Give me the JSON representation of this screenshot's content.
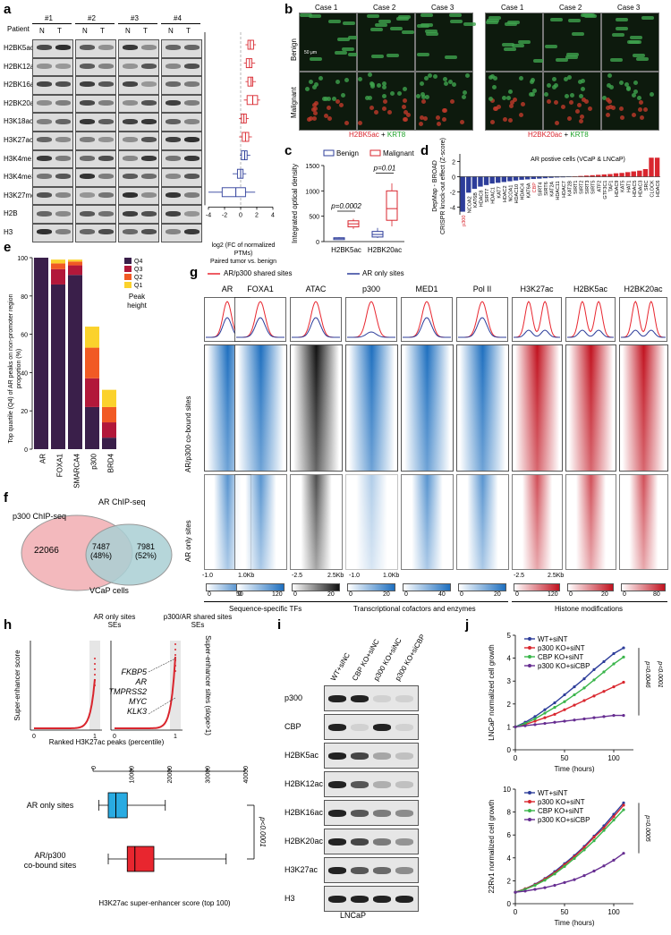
{
  "panel_labels": {
    "a": "a",
    "b": "b",
    "c": "c",
    "d": "d",
    "e": "e",
    "f": "f",
    "g": "g",
    "h": "h",
    "i": "i",
    "j": "j"
  },
  "panel_a": {
    "patient_label": "Patient",
    "patients": [
      "#1",
      "#2",
      "#3",
      "#4"
    ],
    "lanes": [
      "N",
      "T"
    ],
    "marks": [
      "H2BK5ac",
      "H2BK12ac",
      "H2BK16ac",
      "H2BK20ac",
      "H3K18ac",
      "H3K27ac",
      "H3K4me1",
      "H3K4me3",
      "H3K27me3",
      "H2B",
      "H3"
    ],
    "axis_ticks": [
      "-4",
      "-2",
      "0",
      "2",
      "4"
    ],
    "xlabel_line1": "log2 (FC of normalized PTMs)",
    "xlabel_line2": "Paired tumor vs. benign",
    "box_medians": [
      1.2,
      1.1,
      1.3,
      1.5,
      0.4,
      0.6,
      0.5,
      0.0,
      -0.6
    ],
    "box_q1": [
      0.9,
      0.7,
      0.9,
      0.8,
      0.1,
      0.2,
      0.1,
      -0.4,
      -2.3
    ],
    "box_q3": [
      1.6,
      1.4,
      1.5,
      2.1,
      0.7,
      1.0,
      0.8,
      0.3,
      0.6
    ],
    "box_min": [
      0.6,
      0.4,
      0.6,
      0.4,
      -0.2,
      -0.2,
      -0.1,
      -1.0,
      -4.0
    ],
    "box_max": [
      1.9,
      1.8,
      1.9,
      2.4,
      1.0,
      1.4,
      1.2,
      0.7,
      1.8
    ],
    "box_colors": [
      "#d9262e",
      "#d9262e",
      "#d9262e",
      "#d9262e",
      "#d9262e",
      "#d9262e",
      "#2d3d9a",
      "#2d3d9a",
      "#2d3d9a"
    ]
  },
  "panel_b": {
    "cases": [
      "Case 1",
      "Case 2",
      "Case 3",
      "Case 1",
      "Case 2",
      "Case 3"
    ],
    "rows": [
      "Benign",
      "Malignant"
    ],
    "scale_label": "50 μm",
    "legend_left_red": "H2BK5ac",
    "legend_left_green": "KRT8",
    "legend_right_red": "H2BK20ac",
    "legend_right_green": "KRT8",
    "plus": " + "
  },
  "chart_data": [
    {
      "type": "bar",
      "title": "AR postive cells (VCaP & LNCaP)",
      "ylabel_line1": "DepMap - BROAD",
      "ylabel_line2": "CRISPR knock-out effect (Z-score)",
      "categories": [
        "p300",
        "NCOA2",
        "KAT6B",
        "HDAC8",
        "SIRT7",
        "HDAC1",
        "KAT7",
        "HDAC2",
        "NCOA1",
        "HDAC10",
        "HDAC4",
        "KAT6A",
        "CBP",
        "SIRT4",
        "SIRT6",
        "KAT2A",
        "HDAC11",
        "HDAC7",
        "KAT2B",
        "SIRT1",
        "SIRT2",
        "SIRT3",
        "SIRT5",
        "ATF2",
        "GTF3C1",
        "TAF1",
        "HDAC9",
        "KAT5",
        "HAT1",
        "HDAC5",
        "HDAC3",
        "SRC",
        "CLOCK",
        "HDAC6"
      ],
      "values": [
        -4.6,
        -2.1,
        -1.6,
        -1.3,
        -1.1,
        -0.9,
        -0.8,
        -0.7,
        -0.6,
        -0.5,
        -0.4,
        -0.35,
        -0.3,
        -0.25,
        -0.2,
        -0.15,
        -0.1,
        -0.08,
        -0.05,
        0.05,
        0.1,
        0.15,
        0.2,
        0.25,
        0.3,
        0.35,
        0.45,
        0.5,
        0.6,
        0.7,
        0.8,
        1.0,
        2.5,
        2.5
      ],
      "highlight": [
        "p300",
        "CBP"
      ],
      "ylim": [
        -5,
        3
      ],
      "yticks": [
        "2",
        "0",
        "-2",
        "-4"
      ]
    },
    {
      "type": "box",
      "ylabel": "Integrated optical density",
      "categories": [
        "H2BK5ac",
        "H2BK20ac"
      ],
      "series": [
        {
          "name": "Benign",
          "color": "#2d3d9a",
          "q1": [
            55,
            90
          ],
          "median": [
            65,
            140
          ],
          "q3": [
            75,
            200
          ],
          "min": [
            45,
            70
          ],
          "max": [
            85,
            270
          ]
        },
        {
          "name": "Malignant",
          "color": "#d9262e",
          "q1": [
            290,
            420
          ],
          "median": [
            350,
            650
          ],
          "q3": [
            410,
            1000
          ],
          "min": [
            250,
            300
          ],
          "max": [
            450,
            1150
          ]
        }
      ],
      "ylim": [
        0,
        1500
      ],
      "yticks": [
        "0",
        "500",
        "1000",
        "1500"
      ],
      "pvalues": [
        "p=0.0002",
        "p=0.01"
      ]
    },
    {
      "type": "bar",
      "stacked": true,
      "ylabel_line1": "Top quartile (Q4) of AR peaks on non-promoter region",
      "ylabel_line2": "proportion (%)",
      "categories": [
        "AR",
        "FOXA1",
        "SMARCA4",
        "p300",
        "BRD4"
      ],
      "series": [
        {
          "name": "Q4",
          "color": "#3a1f4a",
          "values": [
            100,
            86,
            91,
            22,
            6
          ]
        },
        {
          "name": "Q3",
          "color": "#b2183a",
          "values": [
            0,
            8,
            5,
            15,
            8
          ]
        },
        {
          "name": "Q2",
          "color": "#f15a24",
          "values": [
            0,
            3,
            2,
            16,
            8
          ]
        },
        {
          "name": "Q1",
          "color": "#fbd22c",
          "values": [
            0,
            2,
            1,
            11,
            9
          ]
        }
      ],
      "ylim": [
        0,
        100
      ],
      "yticks": [
        "0",
        "20",
        "40",
        "60",
        "80",
        "100"
      ],
      "legend_title": "Peak height"
    },
    {
      "type": "scatter",
      "xlabel": "Ranked H3K27ac peaks (percentile)",
      "ylabel": "Super-enhancer score",
      "ylabel_right": "Super-enhancer sites (slope>1)",
      "panels": [
        "AR only sites SEs",
        "p300/AR shared sites SEs"
      ],
      "xticks": [
        "0",
        "0.5",
        "1"
      ],
      "genes": [
        "FKBP5",
        "AR",
        "TMPRSS2",
        "MYC",
        "KLK3"
      ]
    },
    {
      "type": "box",
      "orientation": "horizontal",
      "xlabel": "H3K27ac super-enhancer score (top 100)",
      "categories": [
        "AR only sites",
        "AR/p300 co-bound sites"
      ],
      "xticks": [
        "0",
        "10000",
        "20000",
        "30000",
        "40000"
      ],
      "colors": [
        "#29abe2",
        "#e8262f"
      ],
      "q1": [
        4000,
        9000
      ],
      "median": [
        6000,
        11000
      ],
      "q3": [
        9000,
        16000
      ],
      "min": [
        1500,
        4000
      ],
      "max": [
        19000,
        35000
      ],
      "pvalue": "p<0.0001"
    },
    {
      "type": "line",
      "panel": "LNCaP",
      "xlabel": "Time (hours)",
      "ylabel": "LNCaP normalized cell growth",
      "x": [
        0,
        10,
        20,
        30,
        40,
        50,
        60,
        70,
        80,
        90,
        100,
        110
      ],
      "series": [
        {
          "name": "WT+siNT",
          "color": "#2d3d9a",
          "values": [
            1,
            1.2,
            1.45,
            1.75,
            2.05,
            2.4,
            2.75,
            3.1,
            3.5,
            3.85,
            4.2,
            4.45
          ]
        },
        {
          "name": "p300 KO+siNT",
          "color": "#d9262e",
          "values": [
            1,
            1.1,
            1.25,
            1.4,
            1.55,
            1.75,
            1.95,
            2.15,
            2.35,
            2.55,
            2.75,
            2.95
          ]
        },
        {
          "name": "CBP KO+siNT",
          "color": "#39b54a",
          "values": [
            1,
            1.15,
            1.35,
            1.6,
            1.85,
            2.1,
            2.4,
            2.7,
            3.05,
            3.4,
            3.75,
            4.05
          ]
        },
        {
          "name": "p300 KO+siCBP",
          "color": "#662d91",
          "values": [
            1,
            1.05,
            1.1,
            1.15,
            1.2,
            1.25,
            1.3,
            1.35,
            1.4,
            1.45,
            1.5,
            1.5
          ]
        }
      ],
      "ylim": [
        0,
        5
      ],
      "xticks": [
        "0",
        "50",
        "100"
      ],
      "yticks": [
        "0",
        "1",
        "2",
        "3",
        "4",
        "5"
      ],
      "pvalues": [
        "p=0.0046",
        "p<0.0001"
      ]
    },
    {
      "type": "line",
      "panel": "22Rv1",
      "xlabel": "Time (hours)",
      "ylabel": "22Rv1 normalized cell growth",
      "x": [
        0,
        10,
        20,
        30,
        40,
        50,
        60,
        70,
        80,
        90,
        100,
        110
      ],
      "series": [
        {
          "name": "WT+siNT",
          "color": "#2d3d9a",
          "values": [
            1,
            1.3,
            1.7,
            2.2,
            2.8,
            3.5,
            4.2,
            5.0,
            5.9,
            6.8,
            7.8,
            8.8
          ]
        },
        {
          "name": "p300 KO+siNT",
          "color": "#d9262e",
          "values": [
            1,
            1.3,
            1.65,
            2.15,
            2.7,
            3.4,
            4.1,
            4.9,
            5.8,
            6.6,
            7.6,
            8.6
          ]
        },
        {
          "name": "CBP KO+siNT",
          "color": "#39b54a",
          "values": [
            1,
            1.25,
            1.6,
            2.05,
            2.6,
            3.25,
            3.95,
            4.7,
            5.5,
            6.4,
            7.3,
            8.2
          ]
        },
        {
          "name": "p300 KO+siCBP",
          "color": "#662d91",
          "values": [
            1,
            1.1,
            1.25,
            1.4,
            1.6,
            1.85,
            2.1,
            2.45,
            2.85,
            3.3,
            3.8,
            4.4
          ]
        }
      ],
      "ylim": [
        0,
        10
      ],
      "xticks": [
        "0",
        "50",
        "100"
      ],
      "yticks": [
        "0",
        "2",
        "4",
        "6",
        "8",
        "10"
      ],
      "pvalues": [
        "p=0.0005"
      ]
    }
  ],
  "panel_c": {
    "legend": [
      "Benign",
      "Malignant"
    ]
  },
  "panel_f": {
    "title_left": "p300 ChIP-seq",
    "title_right": "AR ChIP-seq",
    "left_only": "22066",
    "overlap": "7487",
    "overlap_pct": "(48%)",
    "right_only": "7981",
    "right_pct": "(52%)",
    "caption": "VCaP cells"
  },
  "panel_g": {
    "legend_shared": "AR/p300 shared sites",
    "legend_ar_only": "AR only sites",
    "tracks": [
      "AR",
      "FOXA1",
      "ATAC",
      "p300",
      "MED1",
      "Pol II",
      "H3K27ac",
      "H2BK5ac",
      "H2BK20ac"
    ],
    "row_labels": [
      "AR/p300 co-bound sites",
      "AR only sites"
    ],
    "axis_left": [
      "-1.0",
      "1.0Kb"
    ],
    "axis_atac": [
      "-2.5",
      "2.5Kb"
    ],
    "axis_p300": [
      "-1.0",
      "1.0Kb"
    ],
    "axis_hist": [
      "-2.5",
      "2.5Kb"
    ],
    "profile_ticks": [
      "100",
      "50",
      "0",
      "120",
      "60"
    ],
    "colorbars": [
      {
        "ticks": [
          "0",
          "50"
        ]
      },
      {
        "ticks": [
          "0",
          "120"
        ]
      },
      {
        "ticks": [
          "0",
          "20"
        ]
      },
      {
        "ticks": [
          "0",
          "20"
        ]
      },
      {
        "ticks": [
          "0",
          "40"
        ]
      },
      {
        "ticks": [
          "0",
          "20"
        ]
      },
      {
        "ticks": [
          "0",
          "120"
        ]
      },
      {
        "ticks": [
          "0",
          "20"
        ]
      },
      {
        "ticks": [
          "0",
          "80"
        ]
      }
    ],
    "group_labels": [
      "Sequence-specific TFs",
      "Transcriptional cofactors and enzymes",
      "Histone modifications"
    ]
  },
  "panel_h": {
    "title_left_1": "AR only sites",
    "title_left_2": "SEs",
    "title_right_1": "p300/AR shared sites",
    "title_right_2": "SEs"
  },
  "panel_i": {
    "columns": [
      "WT+siNC",
      "CBP KO+siNC",
      "p300 KO+siNC",
      "p300 KO+siCBP"
    ],
    "rows": [
      "p300",
      "CBP",
      "H2BK5ac",
      "H2BK12ac",
      "H2BK16ac",
      "H2BK20ac",
      "H3K27ac",
      "H3"
    ],
    "caption": "LNCaP"
  }
}
